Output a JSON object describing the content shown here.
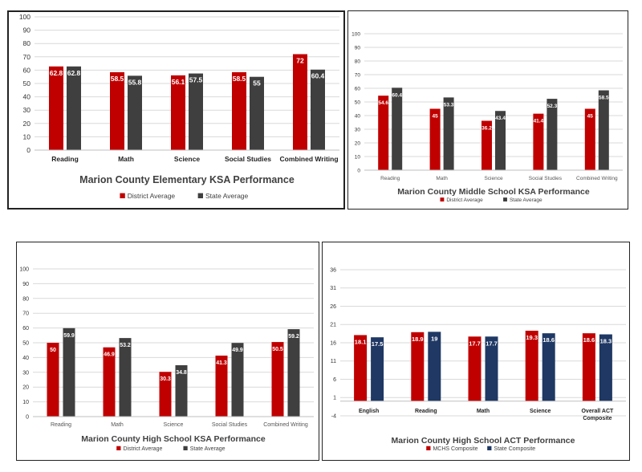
{
  "colors": {
    "primary": "#c00000",
    "secondary": "#3f3f3f",
    "act_state": "#1f3864",
    "grid": "#d9d9d9",
    "axis_text": "#333333"
  },
  "chart_data": [
    {
      "type": "bar",
      "title": "Marion County Elementary KSA Performance",
      "categories": [
        "Reading",
        "Math",
        "Science",
        "Social Studies",
        "Combined Writing"
      ],
      "series": [
        {
          "name": "District Average",
          "values": [
            62.8,
            58.5,
            56.1,
            58.5,
            72
          ]
        },
        {
          "name": "State Average",
          "values": [
            62.8,
            55.8,
            57.5,
            55,
            60.4
          ]
        }
      ],
      "yticks": [
        "0",
        "10",
        "20",
        "30",
        "40",
        "50",
        "60",
        "70",
        "80",
        "90",
        "100"
      ],
      "ylim": [
        0,
        100
      ],
      "grid": true,
      "legend": "bottom"
    },
    {
      "type": "bar",
      "title": "Marion County Middle School KSA Performance",
      "categories": [
        "Reading",
        "Math",
        "Science",
        "Social Studies",
        "Combined Writing"
      ],
      "series": [
        {
          "name": "District Average",
          "values": [
            54.6,
            45,
            36.2,
            41.4,
            45
          ]
        },
        {
          "name": "State Average",
          "values": [
            60.4,
            53.3,
            43.4,
            52.3,
            58.5
          ]
        }
      ],
      "yticks": [
        "0",
        "10",
        "20",
        "30",
        "40",
        "50",
        "60",
        "70",
        "80",
        "90",
        "100"
      ],
      "ylim": [
        0,
        100
      ],
      "grid": true,
      "legend": "bottom"
    },
    {
      "type": "bar",
      "title": "Marion County High School KSA Performance",
      "categories": [
        "Reading",
        "Math",
        "Science",
        "Social Studies",
        "Combined Writing"
      ],
      "series": [
        {
          "name": "District Average",
          "values": [
            50,
            46.9,
            30.3,
            41.3,
            50.5
          ]
        },
        {
          "name": "State Average",
          "values": [
            59.9,
            53.2,
            34.8,
            49.9,
            59.2
          ]
        }
      ],
      "yticks": [
        "0",
        "10",
        "20",
        "30",
        "40",
        "50",
        "60",
        "70",
        "80",
        "90",
        "100"
      ],
      "ylim": [
        0,
        100
      ],
      "grid": true,
      "legend": "bottom"
    },
    {
      "type": "bar",
      "title": "Marion County High School ACT  Performance",
      "categories": [
        "English",
        "Reading",
        "Math",
        "Science",
        "Overall ACT Composite"
      ],
      "series": [
        {
          "name": "MCHS Composite",
          "values": [
            18.1,
            18.9,
            17.7,
            19.3,
            18.6
          ]
        },
        {
          "name": "State Composite",
          "values": [
            17.5,
            19,
            17.7,
            18.6,
            18.3
          ]
        }
      ],
      "yticks": [
        "-4",
        "1",
        "6",
        "11",
        "16",
        "21",
        "26",
        "31",
        "36"
      ],
      "ylim": [
        -4,
        36
      ],
      "grid": true,
      "legend": "bottom"
    }
  ]
}
